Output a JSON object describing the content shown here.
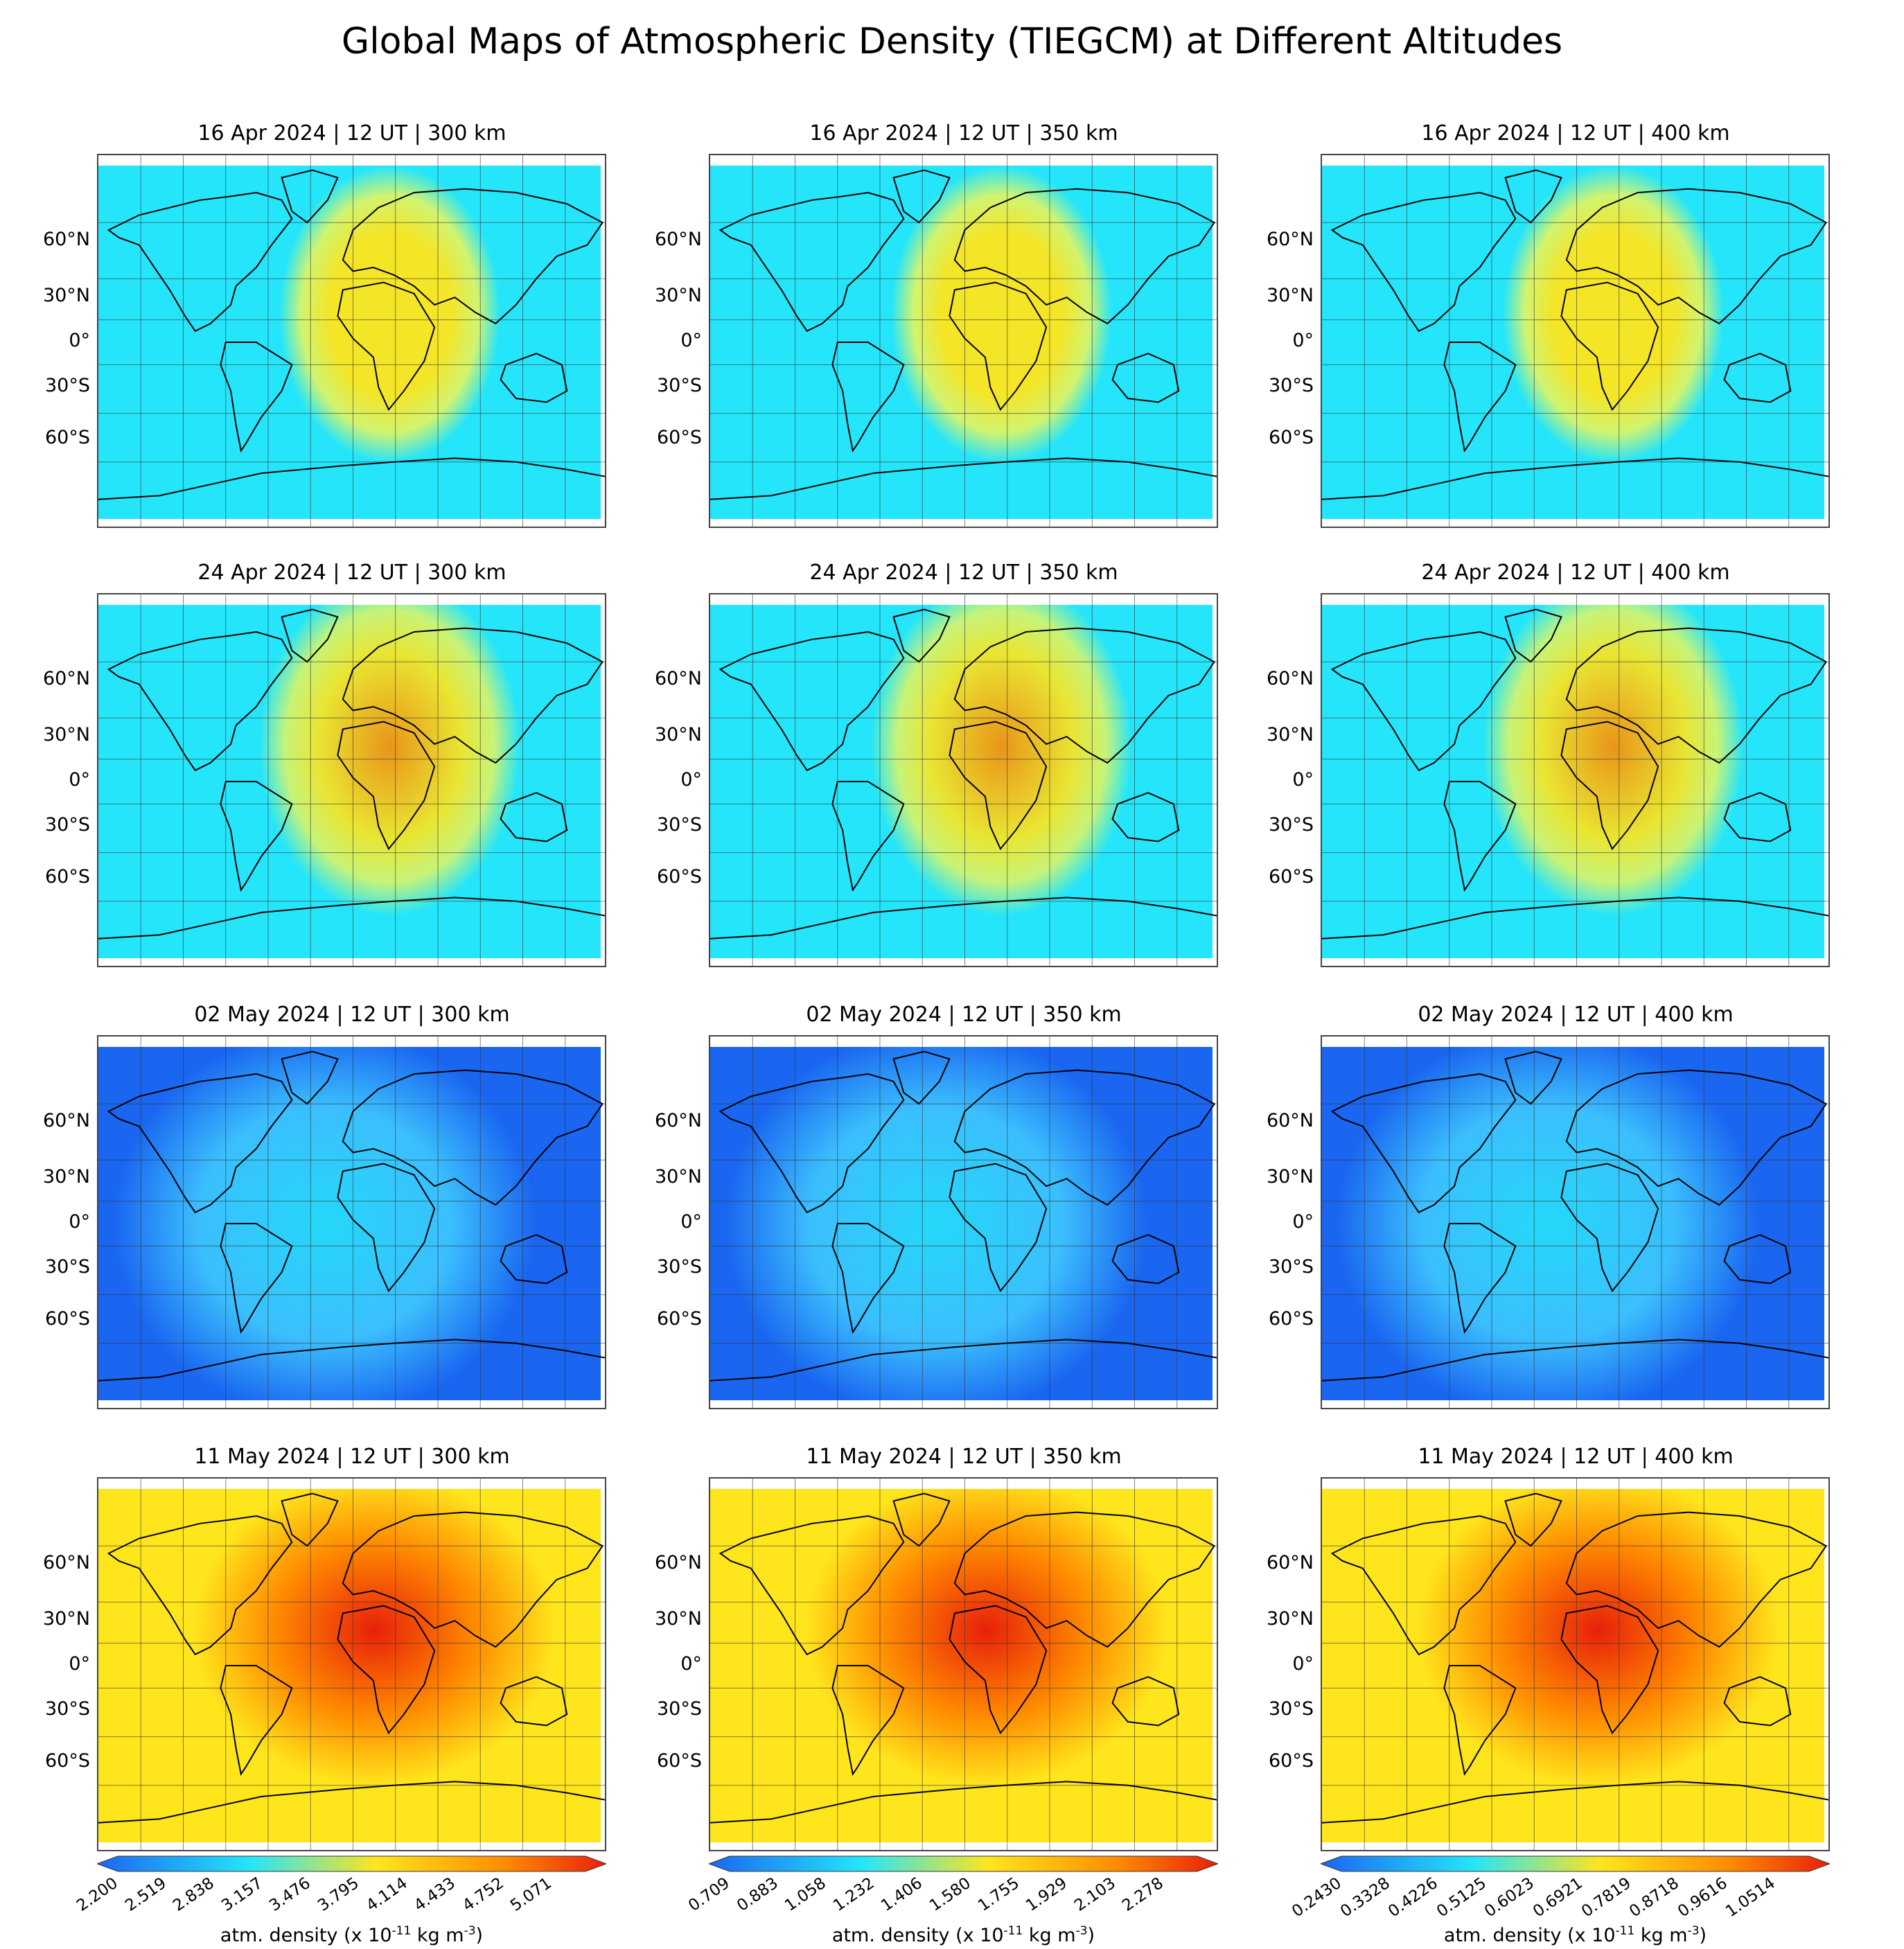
{
  "title": "Global Maps of Atmospheric Density (TIEGCM) at Different Altitudes",
  "lat_labels": [
    "60°N",
    "30°N",
    "0°",
    "30°S",
    "60°S"
  ],
  "rows": [
    {
      "date": "16 Apr 2024",
      "panels": [
        {
          "title": "16 Apr 2024 | 12 UT | 300 km"
        },
        {
          "title": "16 Apr 2024 | 12 UT | 350 km"
        },
        {
          "title": "16 Apr 2024 | 12 UT | 400 km"
        }
      ]
    },
    {
      "date": "24 Apr 2024",
      "panels": [
        {
          "title": "24 Apr 2024 | 12 UT | 300 km"
        },
        {
          "title": "24 Apr 2024 | 12 UT | 350 km"
        },
        {
          "title": "24 Apr 2024 | 12 UT | 400 km"
        }
      ]
    },
    {
      "date": "02 May 2024",
      "panels": [
        {
          "title": "02 May 2024 | 12 UT | 300 km"
        },
        {
          "title": "02 May 2024 | 12 UT | 350 km"
        },
        {
          "title": "02 May 2024 | 12 UT | 400 km"
        }
      ]
    },
    {
      "date": "11 May 2024",
      "panels": [
        {
          "title": "11 May 2024 | 12 UT | 300 km"
        },
        {
          "title": "11 May 2024 | 12 UT | 350 km"
        },
        {
          "title": "11 May 2024 | 12 UT | 400 km"
        }
      ]
    }
  ],
  "colorbars": [
    {
      "altitude": "300 km",
      "ticks": [
        "2.200",
        "2.519",
        "2.838",
        "3.157",
        "3.476",
        "3.795",
        "4.114",
        "4.433",
        "4.752",
        "5.071"
      ]
    },
    {
      "altitude": "350 km",
      "ticks": [
        "0.709",
        "0.883",
        "1.058",
        "1.232",
        "1.406",
        "1.580",
        "1.755",
        "1.929",
        "2.103",
        "2.278"
      ]
    },
    {
      "altitude": "400 km",
      "ticks": [
        "0.2430",
        "0.3328",
        "0.4226",
        "0.5125",
        "0.6023",
        "0.6921",
        "0.7819",
        "0.8718",
        "0.9616",
        "1.0514"
      ]
    }
  ],
  "cbar_label_prefix": "atm. density (x 10",
  "cbar_exp1": "-11",
  "cbar_mid": " kg m",
  "cbar_exp2": "-3",
  "cbar_suffix": ")",
  "colors": {
    "low": "#1a66f0",
    "cyan": "#25e5fa",
    "yellow": "#ffe51c",
    "orange": "#ff8c00",
    "high": "#e8200a",
    "coast": "#000000",
    "grid": "#333333"
  }
}
